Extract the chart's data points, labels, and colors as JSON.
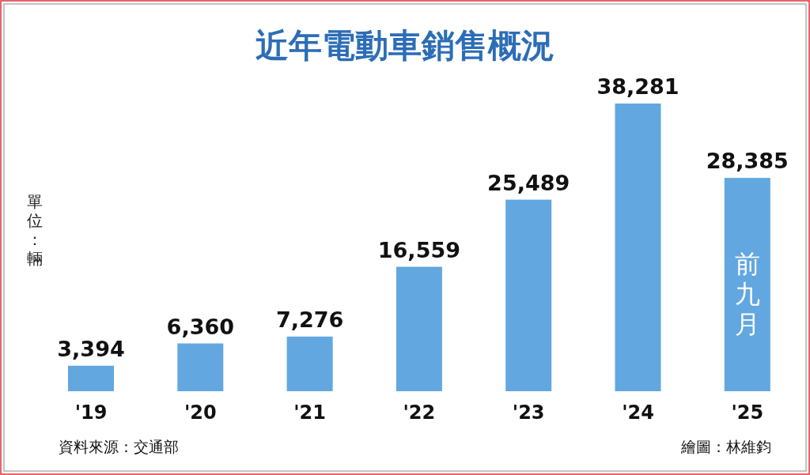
{
  "chart_data": {
    "type": "bar",
    "title": "近年電動車銷售概況",
    "ylabel": "單位：輛",
    "categories": [
      "'19",
      "'20",
      "'21",
      "'22",
      "'23",
      "'24",
      "'25"
    ],
    "values": [
      3394,
      6360,
      7276,
      16559,
      25489,
      38281,
      28385
    ],
    "color": "#62a7e0",
    "value_labels": [
      "3,394",
      "6,360",
      "7,276",
      "16,559",
      "25,489",
      "38,281",
      "28,385"
    ],
    "annotations": [
      "前九月",
      "資料來源：交通部",
      "繪圖：林維鈞"
    ]
  }
}
